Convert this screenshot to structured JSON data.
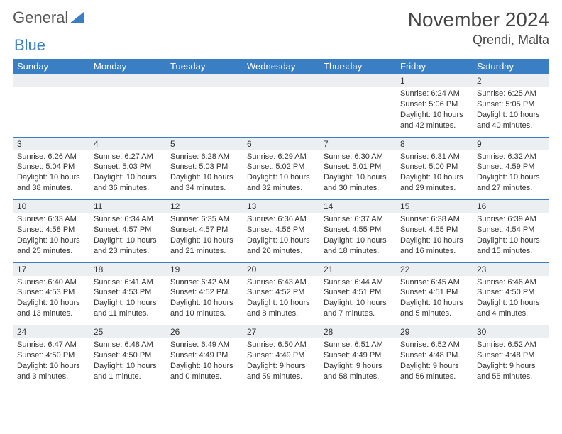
{
  "logo": {
    "text1": "General",
    "text2": "Blue"
  },
  "title": "November 2024",
  "location": "Qrendi, Malta",
  "colors": {
    "header_bg": "#3a7fc4",
    "header_text": "#ffffff",
    "daynum_bg": "#eceff1",
    "border": "#3a7fc4",
    "text": "#333333"
  },
  "day_headers": [
    "Sunday",
    "Monday",
    "Tuesday",
    "Wednesday",
    "Thursday",
    "Friday",
    "Saturday"
  ],
  "weeks": [
    [
      {
        "num": "",
        "lines": []
      },
      {
        "num": "",
        "lines": []
      },
      {
        "num": "",
        "lines": []
      },
      {
        "num": "",
        "lines": []
      },
      {
        "num": "",
        "lines": []
      },
      {
        "num": "1",
        "lines": [
          "Sunrise: 6:24 AM",
          "Sunset: 5:06 PM",
          "Daylight: 10 hours and 42 minutes."
        ]
      },
      {
        "num": "2",
        "lines": [
          "Sunrise: 6:25 AM",
          "Sunset: 5:05 PM",
          "Daylight: 10 hours and 40 minutes."
        ]
      }
    ],
    [
      {
        "num": "3",
        "lines": [
          "Sunrise: 6:26 AM",
          "Sunset: 5:04 PM",
          "Daylight: 10 hours and 38 minutes."
        ]
      },
      {
        "num": "4",
        "lines": [
          "Sunrise: 6:27 AM",
          "Sunset: 5:03 PM",
          "Daylight: 10 hours and 36 minutes."
        ]
      },
      {
        "num": "5",
        "lines": [
          "Sunrise: 6:28 AM",
          "Sunset: 5:03 PM",
          "Daylight: 10 hours and 34 minutes."
        ]
      },
      {
        "num": "6",
        "lines": [
          "Sunrise: 6:29 AM",
          "Sunset: 5:02 PM",
          "Daylight: 10 hours and 32 minutes."
        ]
      },
      {
        "num": "7",
        "lines": [
          "Sunrise: 6:30 AM",
          "Sunset: 5:01 PM",
          "Daylight: 10 hours and 30 minutes."
        ]
      },
      {
        "num": "8",
        "lines": [
          "Sunrise: 6:31 AM",
          "Sunset: 5:00 PM",
          "Daylight: 10 hours and 29 minutes."
        ]
      },
      {
        "num": "9",
        "lines": [
          "Sunrise: 6:32 AM",
          "Sunset: 4:59 PM",
          "Daylight: 10 hours and 27 minutes."
        ]
      }
    ],
    [
      {
        "num": "10",
        "lines": [
          "Sunrise: 6:33 AM",
          "Sunset: 4:58 PM",
          "Daylight: 10 hours and 25 minutes."
        ]
      },
      {
        "num": "11",
        "lines": [
          "Sunrise: 6:34 AM",
          "Sunset: 4:57 PM",
          "Daylight: 10 hours and 23 minutes."
        ]
      },
      {
        "num": "12",
        "lines": [
          "Sunrise: 6:35 AM",
          "Sunset: 4:57 PM",
          "Daylight: 10 hours and 21 minutes."
        ]
      },
      {
        "num": "13",
        "lines": [
          "Sunrise: 6:36 AM",
          "Sunset: 4:56 PM",
          "Daylight: 10 hours and 20 minutes."
        ]
      },
      {
        "num": "14",
        "lines": [
          "Sunrise: 6:37 AM",
          "Sunset: 4:55 PM",
          "Daylight: 10 hours and 18 minutes."
        ]
      },
      {
        "num": "15",
        "lines": [
          "Sunrise: 6:38 AM",
          "Sunset: 4:55 PM",
          "Daylight: 10 hours and 16 minutes."
        ]
      },
      {
        "num": "16",
        "lines": [
          "Sunrise: 6:39 AM",
          "Sunset: 4:54 PM",
          "Daylight: 10 hours and 15 minutes."
        ]
      }
    ],
    [
      {
        "num": "17",
        "lines": [
          "Sunrise: 6:40 AM",
          "Sunset: 4:53 PM",
          "Daylight: 10 hours and 13 minutes."
        ]
      },
      {
        "num": "18",
        "lines": [
          "Sunrise: 6:41 AM",
          "Sunset: 4:53 PM",
          "Daylight: 10 hours and 11 minutes."
        ]
      },
      {
        "num": "19",
        "lines": [
          "Sunrise: 6:42 AM",
          "Sunset: 4:52 PM",
          "Daylight: 10 hours and 10 minutes."
        ]
      },
      {
        "num": "20",
        "lines": [
          "Sunrise: 6:43 AM",
          "Sunset: 4:52 PM",
          "Daylight: 10 hours and 8 minutes."
        ]
      },
      {
        "num": "21",
        "lines": [
          "Sunrise: 6:44 AM",
          "Sunset: 4:51 PM",
          "Daylight: 10 hours and 7 minutes."
        ]
      },
      {
        "num": "22",
        "lines": [
          "Sunrise: 6:45 AM",
          "Sunset: 4:51 PM",
          "Daylight: 10 hours and 5 minutes."
        ]
      },
      {
        "num": "23",
        "lines": [
          "Sunrise: 6:46 AM",
          "Sunset: 4:50 PM",
          "Daylight: 10 hours and 4 minutes."
        ]
      }
    ],
    [
      {
        "num": "24",
        "lines": [
          "Sunrise: 6:47 AM",
          "Sunset: 4:50 PM",
          "Daylight: 10 hours and 3 minutes."
        ]
      },
      {
        "num": "25",
        "lines": [
          "Sunrise: 6:48 AM",
          "Sunset: 4:50 PM",
          "Daylight: 10 hours and 1 minute."
        ]
      },
      {
        "num": "26",
        "lines": [
          "Sunrise: 6:49 AM",
          "Sunset: 4:49 PM",
          "Daylight: 10 hours and 0 minutes."
        ]
      },
      {
        "num": "27",
        "lines": [
          "Sunrise: 6:50 AM",
          "Sunset: 4:49 PM",
          "Daylight: 9 hours and 59 minutes."
        ]
      },
      {
        "num": "28",
        "lines": [
          "Sunrise: 6:51 AM",
          "Sunset: 4:49 PM",
          "Daylight: 9 hours and 58 minutes."
        ]
      },
      {
        "num": "29",
        "lines": [
          "Sunrise: 6:52 AM",
          "Sunset: 4:48 PM",
          "Daylight: 9 hours and 56 minutes."
        ]
      },
      {
        "num": "30",
        "lines": [
          "Sunrise: 6:52 AM",
          "Sunset: 4:48 PM",
          "Daylight: 9 hours and 55 minutes."
        ]
      }
    ]
  ]
}
